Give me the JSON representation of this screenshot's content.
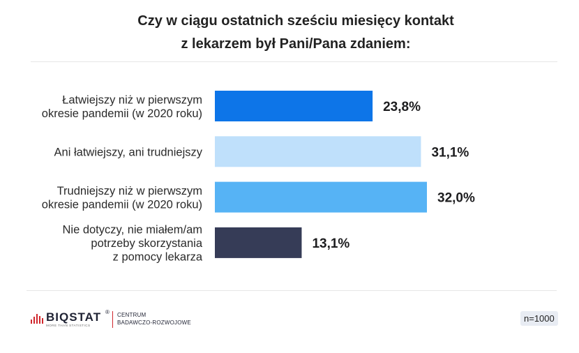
{
  "title": {
    "line1": "Czy w ciągu ostatnich sześciu miesięcy kontakt",
    "line2": "z lekarzem był Pani/Pana zdaniem:"
  },
  "chart_data": {
    "type": "bar",
    "orientation": "horizontal",
    "categories": [
      [
        "Łatwiejszy niż w pierwszym",
        "okresie pandemii (w 2020 roku)"
      ],
      [
        "Ani łatwiejszy, ani trudniejszy"
      ],
      [
        "Trudniejszy niż w pierwszym",
        "okresie pandemii (w 2020 roku)"
      ],
      [
        "Nie dotyczy, nie miałem/am",
        "potrzeby skorzystania",
        "z pomocy lekarza"
      ]
    ],
    "values": [
      23.8,
      31.1,
      32.0,
      13.1
    ],
    "value_labels": [
      "23,8%",
      "31,1%",
      "32,0%",
      "13,1%"
    ],
    "colors": [
      "#0d75e8",
      "#bfe0fb",
      "#56b3f5",
      "#363c57"
    ],
    "xlim": [
      0,
      32.0
    ],
    "grid": false,
    "legend": "none"
  },
  "footer": {
    "logo_name": "BIQSTAT",
    "logo_registered": "®",
    "logo_tagline": "MORE THAN STATISTICS",
    "logo_centrum_line1": "CENTRUM",
    "logo_centrum_line2": "BADAWCZO-ROZWOJOWE",
    "sample_size": "n=1000",
    "logo_icon": "bar-chart-icon",
    "logo_icon_color": "#d0272d"
  }
}
